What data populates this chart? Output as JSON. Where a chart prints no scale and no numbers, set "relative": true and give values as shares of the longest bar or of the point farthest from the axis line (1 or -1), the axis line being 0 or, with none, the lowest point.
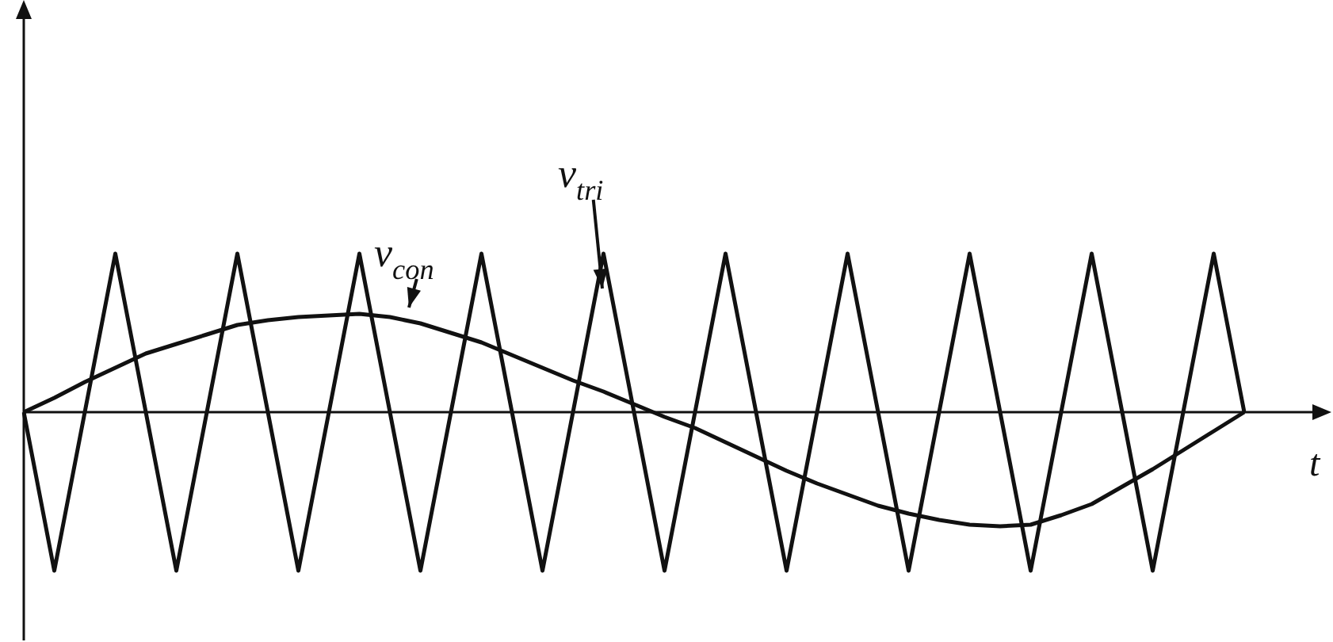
{
  "chart_data": {
    "type": "line",
    "relative": true,
    "xlabel": "t",
    "tick_labels": false,
    "legend": false,
    "marker": "none",
    "line_style": "solid",
    "categories": [
      null,
      null,
      null,
      null,
      null,
      null,
      null,
      null,
      null,
      null,
      null,
      null,
      null,
      null,
      null,
      null,
      null,
      null,
      null,
      null,
      null,
      null,
      null,
      null,
      null,
      null,
      null,
      null,
      null,
      null,
      null,
      null,
      null,
      null,
      null,
      null,
      null,
      null,
      null,
      null,
      null
    ],
    "series": [
      {
        "color": "#111111",
        "values": [
          0,
          -1,
          0,
          1,
          0,
          -1,
          0,
          1,
          0,
          -1,
          0,
          1,
          0,
          -1,
          0,
          1,
          0,
          -1,
          0,
          1,
          0,
          -1,
          0,
          1,
          0,
          -1,
          0,
          1,
          0,
          -1,
          0,
          1,
          0,
          -1,
          0,
          1,
          0,
          -1,
          0,
          1,
          0
        ]
      },
      {
        "color": "#111111",
        "values": [
          0,
          0.09,
          0.19,
          0.28,
          0.37,
          0.43,
          0.49,
          0.55,
          0.58,
          0.6,
          0.61,
          0.62,
          0.6,
          0.56,
          0.5,
          0.44,
          0.36,
          0.28,
          0.2,
          0.13,
          0.05,
          -0.03,
          -0.1,
          -0.19,
          -0.28,
          -0.37,
          -0.45,
          -0.52,
          -0.59,
          -0.64,
          -0.68,
          -0.71,
          -0.72,
          -0.71,
          -0.65,
          -0.58,
          -0.47,
          -0.36,
          -0.24,
          -0.12,
          0
        ]
      }
    ],
    "annotations": [
      "v$_{con}$",
      "v$_{tri}$"
    ]
  }
}
